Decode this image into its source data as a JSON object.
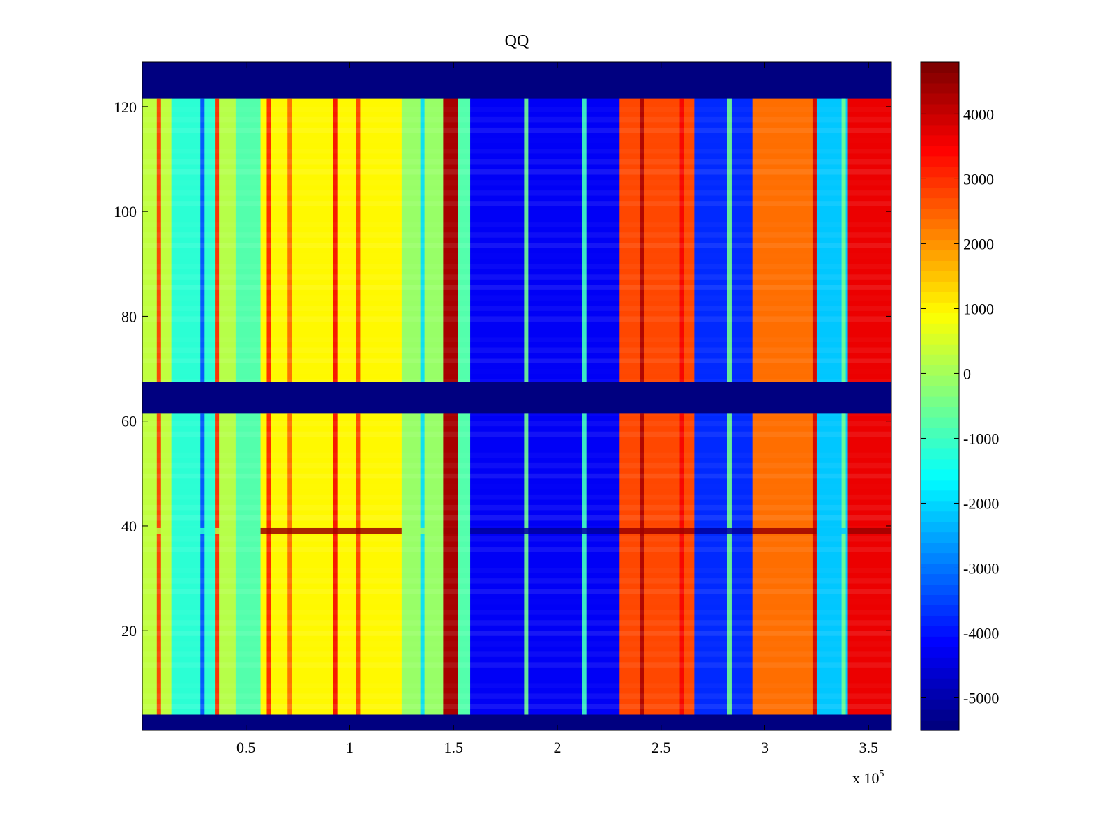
{
  "chart_data": {
    "type": "heatmap",
    "title": "QQ",
    "xlabel": "",
    "ylabel": "",
    "x_multiplier_label": "x 10",
    "x_multiplier_exp": "5",
    "xlim": [
      0,
      3.61
    ],
    "ylim": [
      1,
      128.5
    ],
    "x_ticks": [
      0.5,
      1,
      1.5,
      2,
      2.5,
      3,
      3.5
    ],
    "x_tick_labels": [
      "0.5",
      "1",
      "1.5",
      "2",
      "2.5",
      "3",
      "3.5"
    ],
    "y_ticks": [
      20,
      40,
      60,
      80,
      100,
      120
    ],
    "y_tick_labels": [
      "20",
      "40",
      "60",
      "80",
      "100",
      "120"
    ],
    "colormap": "jet",
    "clim": [
      -5500,
      4800
    ],
    "colorbar_ticks": [
      4000,
      3000,
      2000,
      1000,
      0,
      -1000,
      -2000,
      -3000,
      -4000,
      -5000
    ],
    "colorbar_tick_labels": [
      "4000",
      "3000",
      "2000",
      "1000",
      "0",
      "-1000",
      "-2000",
      "-3000",
      "-4000",
      "-5000"
    ],
    "empty_row_bands": [
      [
        1,
        4
      ],
      [
        61.5,
        67.5
      ],
      [
        121.5,
        128.5
      ]
    ],
    "column_segments": [
      {
        "x0": 0.0,
        "x1": 0.14,
        "value": 300
      },
      {
        "x0": 0.14,
        "x1": 0.35,
        "value": -1200
      },
      {
        "x0": 0.35,
        "x1": 0.45,
        "value": 200
      },
      {
        "x0": 0.45,
        "x1": 0.57,
        "value": -800
      },
      {
        "x0": 0.57,
        "x1": 1.25,
        "value": 1000
      },
      {
        "x0": 1.25,
        "x1": 1.45,
        "value": -100
      },
      {
        "x0": 1.45,
        "x1": 1.52,
        "value": 4400
      },
      {
        "x0": 1.52,
        "x1": 1.58,
        "value": -800
      },
      {
        "x0": 1.58,
        "x1": 2.3,
        "value": -4300
      },
      {
        "x0": 2.3,
        "x1": 2.66,
        "value": 2800
      },
      {
        "x0": 2.66,
        "x1": 2.94,
        "value": -3800
      },
      {
        "x0": 2.94,
        "x1": 3.25,
        "value": 2400
      },
      {
        "x0": 3.25,
        "x1": 3.4,
        "value": -2200
      },
      {
        "x0": 3.4,
        "x1": 3.61,
        "value": 3700
      }
    ],
    "narrow_stripes": [
      {
        "x": 0.08,
        "value": 3000
      },
      {
        "x": 0.29,
        "value": -3500
      },
      {
        "x": 0.36,
        "value": 3200
      },
      {
        "x": 0.61,
        "value": 3300
      },
      {
        "x": 0.71,
        "value": 2500
      },
      {
        "x": 0.93,
        "value": 3600
      },
      {
        "x": 1.04,
        "value": 3000
      },
      {
        "x": 1.35,
        "value": -2000
      },
      {
        "x": 1.85,
        "value": -500
      },
      {
        "x": 2.13,
        "value": -1000
      },
      {
        "x": 2.41,
        "value": 4400
      },
      {
        "x": 2.6,
        "value": 3600
      },
      {
        "x": 2.83,
        "value": -500
      },
      {
        "x": 3.24,
        "value": 4000
      },
      {
        "x": 3.38,
        "value": -500
      }
    ],
    "bright_row": {
      "y": 39,
      "value_warm": 4500,
      "value_cold": -5200
    }
  }
}
